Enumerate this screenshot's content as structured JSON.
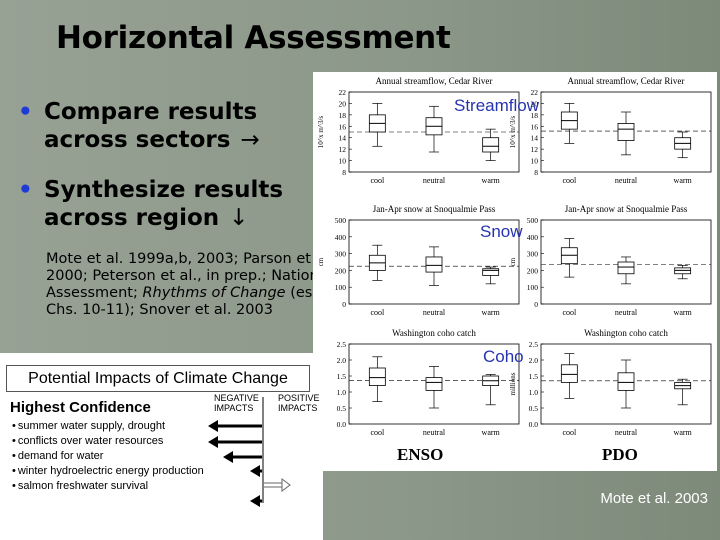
{
  "slide": {
    "title": "Horizontal Assessment",
    "bullets": [
      {
        "line1": "Compare results",
        "line2": "across sectors",
        "arrow": "→"
      },
      {
        "line1": "Synthesize results",
        "line2": "across region",
        "arrow": "↓"
      }
    ],
    "references": {
      "part1": "Mote et al. 1999a,b, 2003; Parson et al. 2000; Peterson et al., in prep.; National Assessment; ",
      "italic": "Rhythms of Change",
      "part2": " (esp. Chs. 10-11); Snover et al. 2003"
    },
    "footer": "Mote et al. 2003"
  },
  "panel_labels": {
    "streamflow": "Streamflow",
    "snow": "Snow",
    "coho": "Coho",
    "enso": "ENSO",
    "pdo": "PDO"
  },
  "impacts": {
    "header": "Potential Impacts of Climate Change",
    "confidence": "Highest Confidence",
    "negative": "NEGATIVE IMPACTS",
    "positive": "POSITIVE IMPACTS",
    "items": [
      "summer water supply, drought",
      "conflicts over water resources",
      "demand for water",
      "winter hydroelectric energy production",
      "salmon freshwater survival"
    ]
  },
  "chart_data": [
    {
      "type": "box",
      "title": "Annual streamflow, Cedar River",
      "categories": [
        "cool",
        "neutral",
        "warm"
      ],
      "ylabel": "10^x m^3/s",
      "ylim": [
        8,
        22
      ],
      "yticks": [
        8,
        10,
        12,
        14,
        16,
        18,
        20,
        22
      ],
      "series": [
        {
          "values": [
            {
              "min": 12.5,
              "q1": 15,
              "median": 16.5,
              "q3": 18,
              "max": 20
            },
            {
              "min": 11.5,
              "q1": 14.5,
              "median": 16,
              "q3": 17.5,
              "max": 19.5
            },
            {
              "min": 10,
              "q1": 11.5,
              "median": 12.5,
              "q3": 14,
              "max": 15.5
            }
          ]
        }
      ]
    },
    {
      "type": "box",
      "title": "Annual streamflow, Cedar River",
      "categories": [
        "cool",
        "neutral",
        "warm"
      ],
      "ylabel": "10^x m^3/s",
      "ylim": [
        8,
        22
      ],
      "yticks": [
        8,
        10,
        12,
        14,
        16,
        18,
        20,
        22
      ],
      "series": [
        {
          "values": [
            {
              "min": 13,
              "q1": 15.5,
              "median": 17,
              "q3": 18.5,
              "max": 20
            },
            {
              "min": 11,
              "q1": 13.5,
              "median": 15.5,
              "q3": 16.5,
              "max": 18.5
            },
            {
              "min": 10.5,
              "q1": 12,
              "median": 13,
              "q3": 14,
              "max": 15
            }
          ]
        }
      ]
    },
    {
      "type": "box",
      "title": "Jan-Apr snow at Snoqualmie Pass",
      "categories": [
        "cool",
        "neutral",
        "warm"
      ],
      "ylabel": "cm",
      "ylim": [
        0,
        500
      ],
      "yticks": [
        0,
        100,
        200,
        300,
        400,
        500
      ],
      "series": [
        {
          "values": [
            {
              "min": 140,
              "q1": 200,
              "median": 245,
              "q3": 290,
              "max": 350
            },
            {
              "min": 110,
              "q1": 190,
              "median": 230,
              "q3": 280,
              "max": 340
            },
            {
              "min": 120,
              "q1": 170,
              "median": 200,
              "q3": 210,
              "max": 220
            }
          ]
        }
      ]
    },
    {
      "type": "box",
      "title": "Jan-Apr snow at Snoqualmie Pass",
      "categories": [
        "cool",
        "neutral",
        "warm"
      ],
      "ylabel": "cm",
      "ylim": [
        0,
        500
      ],
      "yticks": [
        0,
        100,
        200,
        300,
        400,
        500
      ],
      "series": [
        {
          "values": [
            {
              "min": 160,
              "q1": 240,
              "median": 290,
              "q3": 335,
              "max": 390
            },
            {
              "min": 120,
              "q1": 180,
              "median": 220,
              "q3": 250,
              "max": 280
            },
            {
              "min": 150,
              "q1": 180,
              "median": 200,
              "q3": 215,
              "max": 230
            }
          ]
        }
      ]
    },
    {
      "type": "box",
      "title": "Washington coho catch",
      "categories": [
        "cool",
        "neutral",
        "warm"
      ],
      "ylabel": "millions",
      "ylim": [
        0,
        2.5
      ],
      "yticks": [
        0.0,
        0.5,
        1.0,
        1.5,
        2.0,
        2.5
      ],
      "series": [
        {
          "values": [
            {
              "min": 0.7,
              "q1": 1.2,
              "median": 1.45,
              "q3": 1.75,
              "max": 2.1
            },
            {
              "min": 0.5,
              "q1": 1.05,
              "median": 1.3,
              "q3": 1.45,
              "max": 1.8
            },
            {
              "min": 0.6,
              "q1": 1.2,
              "median": 1.35,
              "q3": 1.5,
              "max": 1.55
            }
          ]
        }
      ]
    },
    {
      "type": "box",
      "title": "Washington coho catch",
      "categories": [
        "cool",
        "neutral",
        "warm"
      ],
      "ylabel": "millions",
      "ylim": [
        0,
        2.5
      ],
      "yticks": [
        0.0,
        0.5,
        1.0,
        1.5,
        2.0,
        2.5
      ],
      "series": [
        {
          "values": [
            {
              "min": 0.8,
              "q1": 1.3,
              "median": 1.55,
              "q3": 1.85,
              "max": 2.2
            },
            {
              "min": 0.5,
              "q1": 1.05,
              "median": 1.3,
              "q3": 1.6,
              "max": 2.0
            },
            {
              "min": 0.6,
              "q1": 1.1,
              "median": 1.2,
              "q3": 1.3,
              "max": 1.4
            }
          ]
        }
      ]
    }
  ]
}
